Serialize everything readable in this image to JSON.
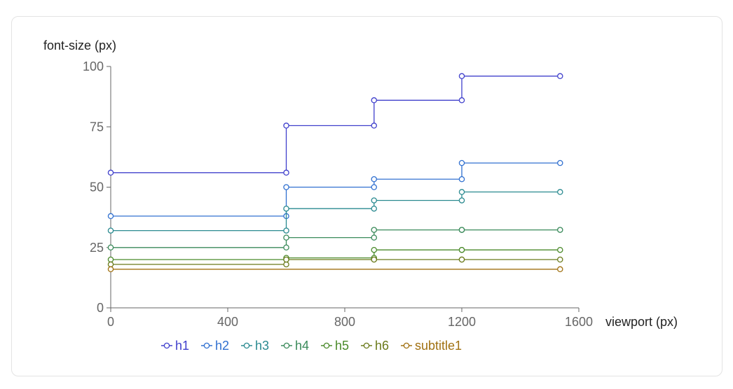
{
  "chart_data": {
    "type": "line",
    "step": true,
    "xlabel": "viewport (px)",
    "ylabel": "font-size (px)",
    "xlim": [
      0,
      1600
    ],
    "ylim": [
      0,
      100
    ],
    "xticks": [
      0,
      400,
      800,
      1200,
      1600
    ],
    "yticks": [
      0,
      25,
      50,
      75,
      100
    ],
    "grid": false,
    "legend_position": "bottom-left",
    "series": [
      {
        "name": "h1",
        "color": "#4040cc",
        "points": [
          [
            0,
            56
          ],
          [
            600,
            56
          ],
          [
            600,
            75.5
          ],
          [
            900,
            75.5
          ],
          [
            900,
            86
          ],
          [
            1200,
            86
          ],
          [
            1200,
            96
          ],
          [
            1536,
            96
          ]
        ]
      },
      {
        "name": "h2",
        "color": "#3070d0",
        "points": [
          [
            0,
            38
          ],
          [
            600,
            38
          ],
          [
            600,
            50
          ],
          [
            900,
            50
          ],
          [
            900,
            53.3
          ],
          [
            1200,
            53.3
          ],
          [
            1200,
            60
          ],
          [
            1536,
            60
          ]
        ]
      },
      {
        "name": "h3",
        "color": "#2a8a90",
        "points": [
          [
            0,
            32
          ],
          [
            600,
            32
          ],
          [
            600,
            41.1
          ],
          [
            900,
            41.1
          ],
          [
            900,
            44.5
          ],
          [
            1200,
            44.5
          ],
          [
            1200,
            48
          ],
          [
            1536,
            48
          ]
        ]
      },
      {
        "name": "h4",
        "color": "#3a8a5a",
        "points": [
          [
            0,
            25
          ],
          [
            600,
            25
          ],
          [
            600,
            29.1
          ],
          [
            900,
            29.1
          ],
          [
            900,
            32.3
          ],
          [
            1200,
            32.3
          ],
          [
            1200,
            32.3
          ],
          [
            1536,
            32.3
          ]
        ]
      },
      {
        "name": "h5",
        "color": "#4a8a2a",
        "points": [
          [
            0,
            20
          ],
          [
            600,
            20
          ],
          [
            600,
            20.7
          ],
          [
            900,
            20.7
          ],
          [
            900,
            24
          ],
          [
            1200,
            24
          ],
          [
            1200,
            24
          ],
          [
            1536,
            24
          ]
        ]
      },
      {
        "name": "h6",
        "color": "#6a7a1a",
        "points": [
          [
            0,
            18
          ],
          [
            600,
            18
          ],
          [
            600,
            20
          ],
          [
            900,
            20
          ],
          [
            900,
            20
          ],
          [
            1200,
            20
          ],
          [
            1200,
            20
          ],
          [
            1536,
            20
          ]
        ]
      },
      {
        "name": "subtitle1",
        "color": "#a07010",
        "points": [
          [
            0,
            16
          ],
          [
            1536,
            16
          ]
        ]
      }
    ]
  }
}
